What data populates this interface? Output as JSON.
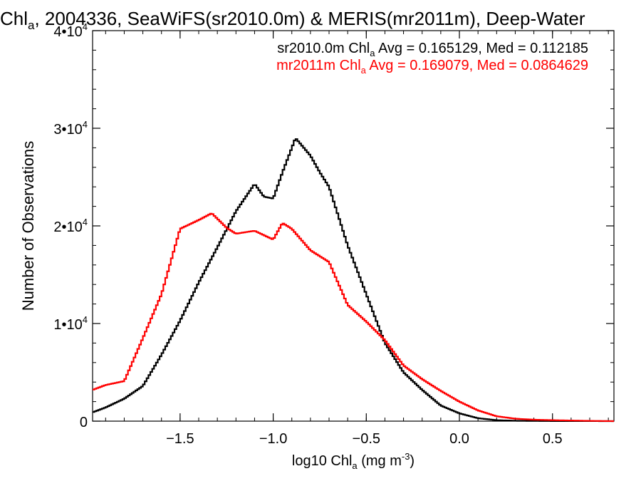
{
  "chart_data": {
    "type": "line",
    "title": {
      "pre": "Chl",
      "sub": "a",
      "post": ", 2004336, SeaWiFS(sr2010.0m) & MERIS(mr2011m), Deep-Water"
    },
    "xlabel": {
      "pre": "log10 Chl",
      "sub": "a",
      "mid": " (mg m",
      "sup": "-3",
      "post": ")"
    },
    "ylabel": "Number of Observations",
    "xlim": [
      -1.97,
      0.83
    ],
    "ylim": [
      0,
      40000
    ],
    "x_ticks": [
      {
        "value": -1.5,
        "label": "−1.5"
      },
      {
        "value": -1.0,
        "label": "−1.0"
      },
      {
        "value": -0.5,
        "label": "−0.5"
      },
      {
        "value": 0.0,
        "label": "0.0"
      },
      {
        "value": 0.5,
        "label": "0.5"
      }
    ],
    "y_ticks": [
      {
        "value": 0,
        "base": "0",
        "exp": ""
      },
      {
        "value": 10000,
        "base": "1•10",
        "exp": "4"
      },
      {
        "value": 20000,
        "base": "2•10",
        "exp": "4"
      },
      {
        "value": 30000,
        "base": "3•10",
        "exp": "4"
      },
      {
        "value": 40000,
        "base": "4•10",
        "exp": "4"
      }
    ],
    "x_minor_step": 0.1,
    "y_minor_step": 2000,
    "legend_position": "top-right",
    "series": [
      {
        "color": "#000000",
        "legend": {
          "pre": "sr2010.0m Chl",
          "sub": "a",
          "post": " Avg = 0.165129, Med = 0.112185"
        },
        "points": [
          [
            -1.97,
            900
          ],
          [
            -1.9,
            1400
          ],
          [
            -1.8,
            2300
          ],
          [
            -1.7,
            3600
          ],
          [
            -1.6,
            6800
          ],
          [
            -1.5,
            10300
          ],
          [
            -1.4,
            14200
          ],
          [
            -1.3,
            17800
          ],
          [
            -1.2,
            21500
          ],
          [
            -1.1,
            24300
          ],
          [
            -1.05,
            23000
          ],
          [
            -1.0,
            22800
          ],
          [
            -0.95,
            25500
          ],
          [
            -0.88,
            29000
          ],
          [
            -0.8,
            27200
          ],
          [
            -0.75,
            25500
          ],
          [
            -0.7,
            24000
          ],
          [
            -0.6,
            18000
          ],
          [
            -0.5,
            13000
          ],
          [
            -0.4,
            8000
          ],
          [
            -0.3,
            5000
          ],
          [
            -0.2,
            3200
          ],
          [
            -0.1,
            1600
          ],
          [
            0.0,
            800
          ],
          [
            0.1,
            300
          ],
          [
            0.2,
            100
          ],
          [
            0.3,
            40
          ],
          [
            0.5,
            10
          ],
          [
            0.83,
            0
          ]
        ]
      },
      {
        "color": "#ff0000",
        "legend": {
          "pre": "mr2011m Chl",
          "sub": "a",
          "post": " Avg = 0.169079, Med = 0.0864629"
        },
        "points": [
          [
            -1.97,
            3200
          ],
          [
            -1.9,
            3700
          ],
          [
            -1.8,
            4100
          ],
          [
            -1.7,
            8500
          ],
          [
            -1.6,
            13000
          ],
          [
            -1.5,
            19700
          ],
          [
            -1.4,
            20600
          ],
          [
            -1.33,
            21300
          ],
          [
            -1.25,
            19800
          ],
          [
            -1.2,
            19200
          ],
          [
            -1.1,
            19500
          ],
          [
            -1.0,
            18600
          ],
          [
            -0.95,
            20300
          ],
          [
            -0.9,
            19700
          ],
          [
            -0.8,
            17500
          ],
          [
            -0.7,
            16300
          ],
          [
            -0.6,
            11900
          ],
          [
            -0.5,
            10200
          ],
          [
            -0.4,
            8300
          ],
          [
            -0.3,
            5700
          ],
          [
            -0.2,
            4300
          ],
          [
            -0.1,
            3100
          ],
          [
            0.0,
            2000
          ],
          [
            0.1,
            1100
          ],
          [
            0.2,
            500
          ],
          [
            0.3,
            250
          ],
          [
            0.4,
            150
          ],
          [
            0.5,
            100
          ],
          [
            0.7,
            30
          ],
          [
            0.83,
            0
          ]
        ]
      }
    ]
  }
}
